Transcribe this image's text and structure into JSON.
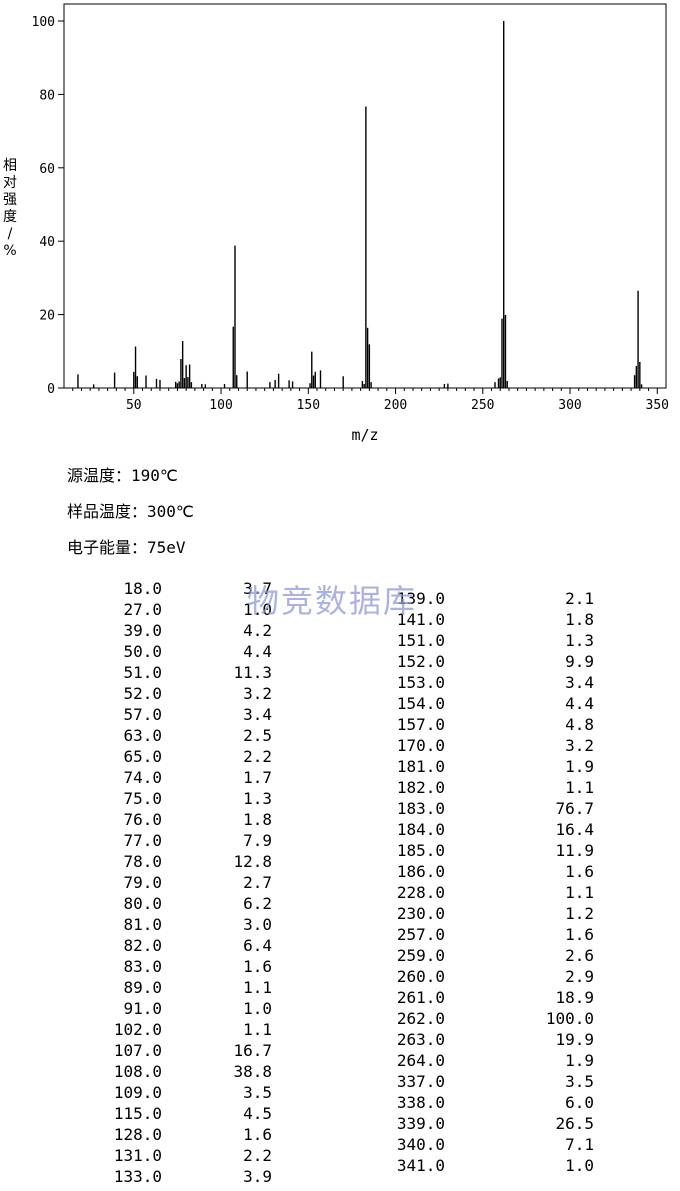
{
  "chart_data": {
    "type": "bar",
    "xlabel": "m/z",
    "ylabel": "相对强度/%",
    "xlim": [
      10,
      355
    ],
    "ylim": [
      0,
      100
    ],
    "xticks": [
      50,
      100,
      150,
      200,
      250,
      300,
      350
    ],
    "yticks": [
      0,
      20,
      40,
      60,
      80,
      100
    ],
    "grid": false,
    "peaks": [
      {
        "mz": 18.0,
        "intensity": 3.7
      },
      {
        "mz": 27.0,
        "intensity": 1.0
      },
      {
        "mz": 39.0,
        "intensity": 4.2
      },
      {
        "mz": 50.0,
        "intensity": 4.4
      },
      {
        "mz": 51.0,
        "intensity": 11.3
      },
      {
        "mz": 52.0,
        "intensity": 3.2
      },
      {
        "mz": 57.0,
        "intensity": 3.4
      },
      {
        "mz": 63.0,
        "intensity": 2.5
      },
      {
        "mz": 65.0,
        "intensity": 2.2
      },
      {
        "mz": 74.0,
        "intensity": 1.7
      },
      {
        "mz": 75.0,
        "intensity": 1.3
      },
      {
        "mz": 76.0,
        "intensity": 1.8
      },
      {
        "mz": 77.0,
        "intensity": 7.9
      },
      {
        "mz": 78.0,
        "intensity": 12.8
      },
      {
        "mz": 79.0,
        "intensity": 2.7
      },
      {
        "mz": 80.0,
        "intensity": 6.2
      },
      {
        "mz": 81.0,
        "intensity": 3.0
      },
      {
        "mz": 82.0,
        "intensity": 6.4
      },
      {
        "mz": 83.0,
        "intensity": 1.6
      },
      {
        "mz": 89.0,
        "intensity": 1.1
      },
      {
        "mz": 91.0,
        "intensity": 1.0
      },
      {
        "mz": 102.0,
        "intensity": 1.1
      },
      {
        "mz": 107.0,
        "intensity": 16.7
      },
      {
        "mz": 108.0,
        "intensity": 38.8
      },
      {
        "mz": 109.0,
        "intensity": 3.5
      },
      {
        "mz": 115.0,
        "intensity": 4.5
      },
      {
        "mz": 128.0,
        "intensity": 1.6
      },
      {
        "mz": 131.0,
        "intensity": 2.2
      },
      {
        "mz": 133.0,
        "intensity": 3.9
      },
      {
        "mz": 139.0,
        "intensity": 2.1
      },
      {
        "mz": 141.0,
        "intensity": 1.8
      },
      {
        "mz": 151.0,
        "intensity": 1.3
      },
      {
        "mz": 152.0,
        "intensity": 9.9
      },
      {
        "mz": 153.0,
        "intensity": 3.4
      },
      {
        "mz": 154.0,
        "intensity": 4.4
      },
      {
        "mz": 157.0,
        "intensity": 4.8
      },
      {
        "mz": 170.0,
        "intensity": 3.2
      },
      {
        "mz": 181.0,
        "intensity": 1.9
      },
      {
        "mz": 182.0,
        "intensity": 1.1
      },
      {
        "mz": 183.0,
        "intensity": 76.7
      },
      {
        "mz": 184.0,
        "intensity": 16.4
      },
      {
        "mz": 185.0,
        "intensity": 11.9
      },
      {
        "mz": 186.0,
        "intensity": 1.6
      },
      {
        "mz": 228.0,
        "intensity": 1.1
      },
      {
        "mz": 230.0,
        "intensity": 1.2
      },
      {
        "mz": 257.0,
        "intensity": 1.6
      },
      {
        "mz": 259.0,
        "intensity": 2.6
      },
      {
        "mz": 260.0,
        "intensity": 2.9
      },
      {
        "mz": 261.0,
        "intensity": 18.9
      },
      {
        "mz": 262.0,
        "intensity": 100.0
      },
      {
        "mz": 263.0,
        "intensity": 19.9
      },
      {
        "mz": 264.0,
        "intensity": 1.9
      },
      {
        "mz": 337.0,
        "intensity": 3.5
      },
      {
        "mz": 338.0,
        "intensity": 6.0
      },
      {
        "mz": 339.0,
        "intensity": 26.5
      },
      {
        "mz": 340.0,
        "intensity": 7.1
      },
      {
        "mz": 341.0,
        "intensity": 1.0
      }
    ]
  },
  "conditions": [
    {
      "label": "源温度：",
      "value": "190℃"
    },
    {
      "label": "样品温度：",
      "value": "300℃"
    },
    {
      "label": "电子能量：",
      "value": "75eV"
    }
  ],
  "peak_table": {
    "left": [
      [
        "18.0",
        "3.7"
      ],
      [
        "27.0",
        "1.0"
      ],
      [
        "39.0",
        "4.2"
      ],
      [
        "50.0",
        "4.4"
      ],
      [
        "51.0",
        "11.3"
      ],
      [
        "52.0",
        "3.2"
      ],
      [
        "57.0",
        "3.4"
      ],
      [
        "63.0",
        "2.5"
      ],
      [
        "65.0",
        "2.2"
      ],
      [
        "74.0",
        "1.7"
      ],
      [
        "75.0",
        "1.3"
      ],
      [
        "76.0",
        "1.8"
      ],
      [
        "77.0",
        "7.9"
      ],
      [
        "78.0",
        "12.8"
      ],
      [
        "79.0",
        "2.7"
      ],
      [
        "80.0",
        "6.2"
      ],
      [
        "81.0",
        "3.0"
      ],
      [
        "82.0",
        "6.4"
      ],
      [
        "83.0",
        "1.6"
      ],
      [
        "89.0",
        "1.1"
      ],
      [
        "91.0",
        "1.0"
      ],
      [
        "102.0",
        "1.1"
      ],
      [
        "107.0",
        "16.7"
      ],
      [
        "108.0",
        "38.8"
      ],
      [
        "109.0",
        "3.5"
      ],
      [
        "115.0",
        "4.5"
      ],
      [
        "128.0",
        "1.6"
      ],
      [
        "131.0",
        "2.2"
      ],
      [
        "133.0",
        "3.9"
      ]
    ],
    "right": [
      [
        "139.0",
        "2.1"
      ],
      [
        "141.0",
        "1.8"
      ],
      [
        "151.0",
        "1.3"
      ],
      [
        "152.0",
        "9.9"
      ],
      [
        "153.0",
        "3.4"
      ],
      [
        "154.0",
        "4.4"
      ],
      [
        "157.0",
        "4.8"
      ],
      [
        "170.0",
        "3.2"
      ],
      [
        "181.0",
        "1.9"
      ],
      [
        "182.0",
        "1.1"
      ],
      [
        "183.0",
        "76.7"
      ],
      [
        "184.0",
        "16.4"
      ],
      [
        "185.0",
        "11.9"
      ],
      [
        "186.0",
        "1.6"
      ],
      [
        "228.0",
        "1.1"
      ],
      [
        "230.0",
        "1.2"
      ],
      [
        "257.0",
        "1.6"
      ],
      [
        "259.0",
        "2.6"
      ],
      [
        "260.0",
        "2.9"
      ],
      [
        "261.0",
        "18.9"
      ],
      [
        "262.0",
        "100.0"
      ],
      [
        "263.0",
        "19.9"
      ],
      [
        "264.0",
        "1.9"
      ],
      [
        "337.0",
        "3.5"
      ],
      [
        "338.0",
        "6.0"
      ],
      [
        "339.0",
        "26.5"
      ],
      [
        "340.0",
        "7.1"
      ],
      [
        "341.0",
        "1.0"
      ]
    ]
  },
  "watermark": "物竞数据库"
}
